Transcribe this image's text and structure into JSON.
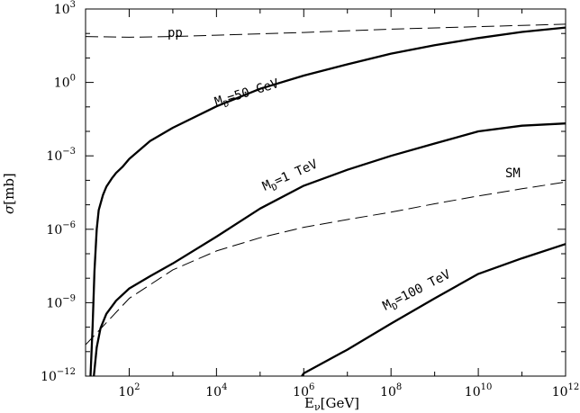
{
  "chart_data": {
    "type": "line",
    "x_scale": "log",
    "y_scale": "log",
    "xlim": [
      10.0,
      1000000000000.0
    ],
    "ylim": [
      1e-12,
      1000.0
    ],
    "xlabel": {
      "main": "E",
      "sub": "ν",
      "unit": "[GeV]"
    },
    "ylabel": {
      "main": "σ",
      "unit": "[mb]"
    },
    "x_ticks": [
      {
        "value": 100,
        "base": "10",
        "exp": "2"
      },
      {
        "value": 10000,
        "base": "10",
        "exp": "4"
      },
      {
        "value": 1000000,
        "base": "10",
        "exp": "6"
      },
      {
        "value": 100000000,
        "base": "10",
        "exp": "8"
      },
      {
        "value": 10000000000,
        "base": "10",
        "exp": "10"
      },
      {
        "value": 1000000000000,
        "base": "10",
        "exp": "12"
      }
    ],
    "y_ticks": [
      {
        "value": 1e-12,
        "base": "10",
        "exp": "−12"
      },
      {
        "value": 1e-09,
        "base": "10",
        "exp": "−9"
      },
      {
        "value": 1e-06,
        "base": "10",
        "exp": "−6"
      },
      {
        "value": 0.001,
        "base": "10",
        "exp": "−3"
      },
      {
        "value": 1,
        "base": "10",
        "exp": "0"
      },
      {
        "value": 1000,
        "base": "10",
        "exp": "3"
      }
    ],
    "series": [
      {
        "name": "pp",
        "style": "dashed",
        "x": [
          10.0,
          100.0,
          1000.0,
          10000.0,
          1000000.0,
          100000000.0,
          10000000000.0,
          1000000000000.0
        ],
        "y": [
          75,
          70,
          75,
          85,
          110,
          150,
          190,
          240
        ]
      },
      {
        "name": "SM",
        "style": "dashed",
        "x": [
          10.0,
          100.0,
          1000.0,
          10000.0,
          100000.0,
          1000000.0,
          10000000.0,
          100000000.0,
          1000000000.0,
          10000000000.0,
          100000000000.0,
          1000000000000.0
        ],
        "y": [
          1.9e-11,
          1.5e-09,
          2.2e-08,
          1.3e-07,
          4.5e-07,
          1.2e-06,
          2.5e-06,
          5e-06,
          1.1e-05,
          2.3e-05,
          4.5e-05,
          8.5e-05
        ]
      },
      {
        "name": "M_D=50 GeV",
        "style": "solid",
        "x": [
          13.0,
          14.5,
          16.0,
          18.0,
          20.0,
          25.0,
          30.0,
          40.0,
          50.0,
          70.0,
          100.0,
          300.0,
          1000.0,
          10000.0,
          100000.0,
          1000000.0,
          10000000.0,
          100000000.0,
          1000000000.0,
          10000000000.0,
          100000000000.0,
          1000000000000.0
        ],
        "y": [
          1e-12,
          1e-10,
          2e-08,
          1e-06,
          6e-06,
          2.5e-05,
          5.5e-05,
          0.00012,
          0.0002,
          0.00035,
          0.00075,
          0.004,
          0.014,
          0.105,
          0.55,
          1.9,
          5.5,
          15,
          33,
          65,
          115,
          175
        ]
      },
      {
        "name": "M_D=1 TeV",
        "style": "solid",
        "x": [
          15.5,
          18.0,
          22.0,
          30.0,
          50.0,
          100.0,
          300.0,
          1000.0,
          10000.0,
          100000.0,
          1000000.0,
          10000000.0,
          100000000.0,
          1000000000.0,
          10000000000.0,
          100000000000.0,
          1000000000000.0
        ],
        "y": [
          1e-12,
          1.5e-11,
          9e-11,
          3.5e-10,
          1.2e-09,
          3.8e-09,
          1.2e-08,
          4e-08,
          5e-07,
          7e-06,
          6e-05,
          0.00027,
          0.001,
          0.0032,
          0.01,
          0.017,
          0.021
        ]
      },
      {
        "name": "M_D=100 TeV",
        "style": "solid",
        "x": [
          900000.0,
          1000000.0,
          10000000.0,
          100000000.0,
          1000000000.0,
          10000000000.0,
          100000000000.0,
          1000000000000.0
        ],
        "y": [
          1e-12,
          1.3e-12,
          1.2e-11,
          1.4e-10,
          1.5e-09,
          1.5e-08,
          6.5e-08,
          2.5e-07
        ]
      }
    ],
    "annotations": {
      "pp": "pp",
      "sm": "SM",
      "md50": {
        "prefix": "M",
        "sub": "D",
        "rest": "=50 GeV"
      },
      "md1": {
        "prefix": "M",
        "sub": "D",
        "rest": "=1 TeV"
      },
      "md100": {
        "prefix": "M",
        "sub": "D",
        "rest": "=100 TeV"
      }
    }
  }
}
